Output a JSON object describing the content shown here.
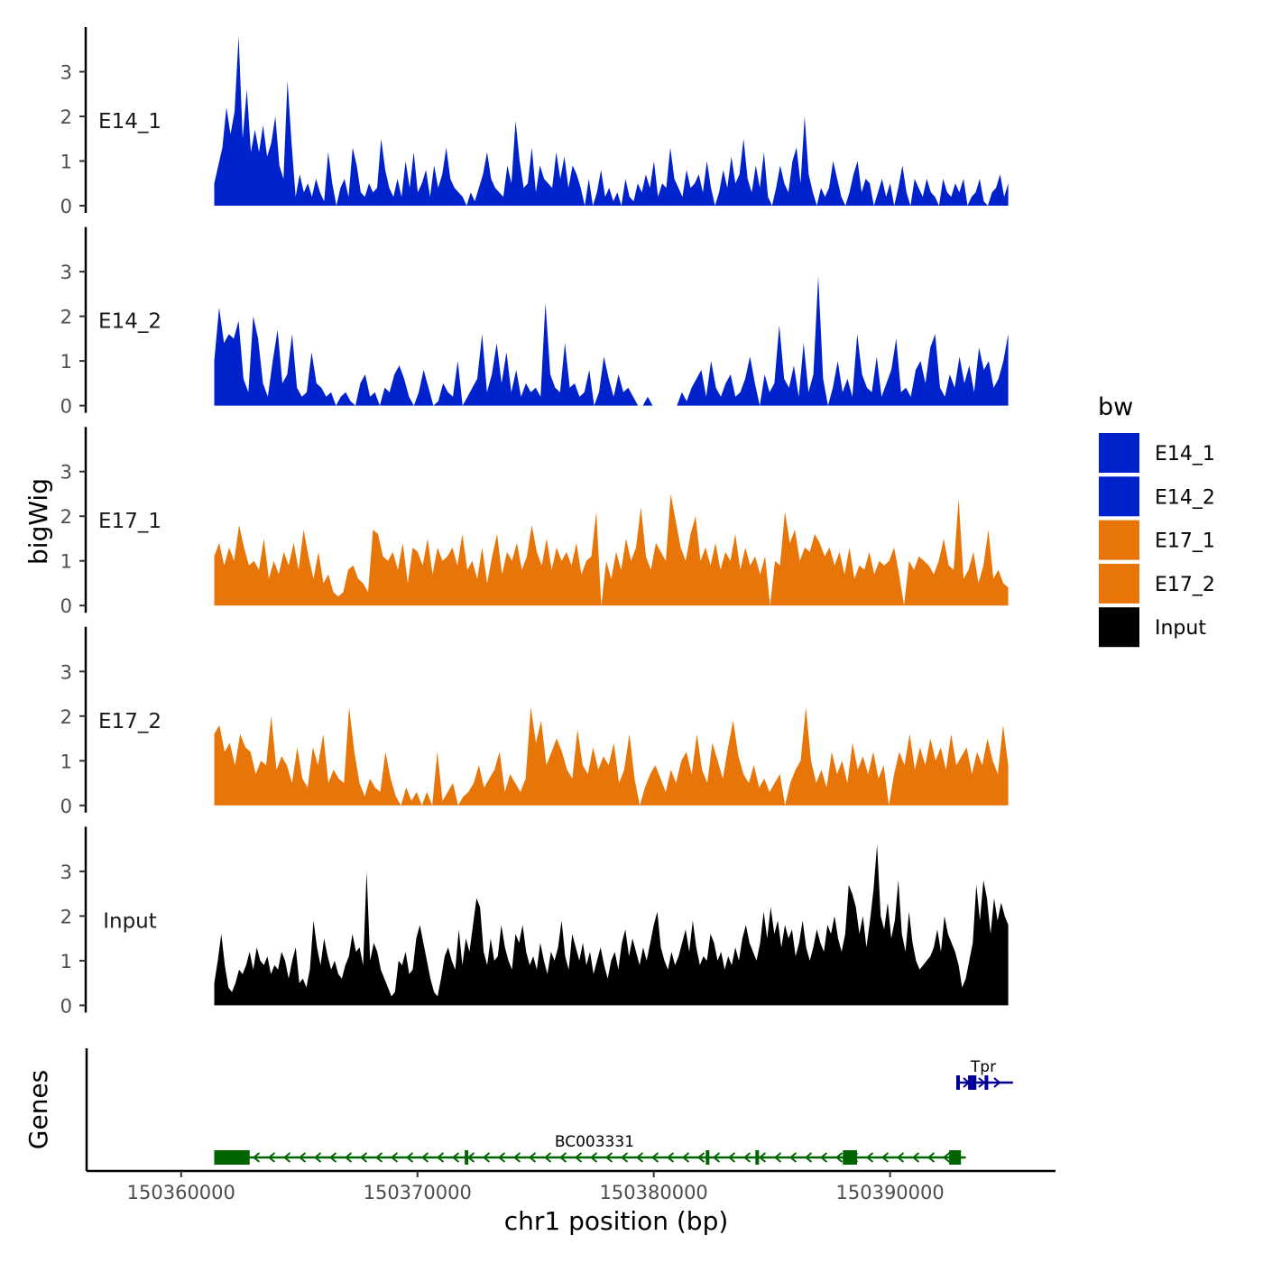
{
  "chart_data": {
    "type": "area",
    "ylabel": "bigWig",
    "xlabel": "chr1 position (bp)",
    "genes_label": "Genes",
    "ylim": [
      0,
      4
    ],
    "yticks": [
      0,
      1,
      2,
      3
    ],
    "xlim": [
      150356000,
      150397000
    ],
    "x_range_data": [
      150361400,
      150395000
    ],
    "xticks": [
      150360000,
      150370000,
      150380000,
      150390000
    ],
    "xtick_labels": [
      "150360000",
      "150370000",
      "150380000",
      "150390000"
    ],
    "legend": {
      "title": "bw",
      "entries": [
        {
          "name": "E14_1",
          "color": "#0022CC"
        },
        {
          "name": "E14_2",
          "color": "#0022CC"
        },
        {
          "name": "E17_1",
          "color": "#E87508"
        },
        {
          "name": "E17_2",
          "color": "#E87508"
        },
        {
          "name": "Input",
          "color": "#000000"
        }
      ]
    },
    "series": [
      {
        "name": "E14_1",
        "color": "#0022CC",
        "values": [
          0.5,
          0.9,
          1.3,
          2.2,
          1.6,
          2.1,
          3.8,
          1.5,
          2.6,
          1.2,
          1.7,
          1.2,
          1.8,
          1.1,
          1.4,
          2.0,
          0.9,
          0.6,
          2.8,
          1.4,
          0.2,
          0.7,
          0.3,
          0.5,
          0.2,
          0.6,
          0.3,
          0.1,
          1.2,
          0.5,
          0.0,
          0.4,
          0.6,
          0.2,
          1.3,
          0.9,
          0.3,
          0.2,
          0.5,
          0.3,
          0.4,
          1.5,
          0.8,
          0.4,
          0.2,
          0.6,
          0.2,
          1.0,
          0.4,
          1.2,
          0.3,
          0.5,
          0.8,
          0.2,
          0.9,
          0.4,
          0.7,
          1.3,
          0.6,
          0.4,
          0.3,
          0.2,
          0.0,
          0.3,
          0.1,
          0.4,
          0.7,
          1.2,
          0.6,
          0.4,
          0.3,
          0.2,
          0.9,
          0.5,
          1.9,
          1.0,
          0.4,
          0.5,
          1.3,
          0.3,
          0.9,
          0.6,
          0.5,
          0.4,
          1.2,
          0.6,
          1.1,
          0.4,
          0.9,
          0.7,
          0.4,
          0.0,
          0.6,
          0.0,
          0.3,
          0.8,
          0.2,
          0.4,
          0.1,
          0.3,
          0.0,
          0.6,
          0.2,
          0.1,
          0.5,
          0.3,
          0.7,
          0.4,
          1.0,
          0.2,
          0.5,
          0.4,
          1.3,
          0.6,
          0.4,
          0.2,
          0.8,
          0.4,
          0.5,
          0.7,
          0.3,
          1.0,
          0.4,
          0.0,
          0.3,
          0.8,
          0.4,
          1.1,
          0.5,
          0.7,
          1.5,
          0.6,
          0.3,
          0.9,
          0.4,
          1.2,
          0.2,
          0.0,
          0.4,
          0.9,
          0.5,
          0.3,
          1.0,
          1.3,
          0.5,
          2.0,
          0.7,
          0.3,
          0.0,
          0.4,
          0.2,
          0.4,
          1.0,
          0.6,
          0.2,
          0.0,
          0.3,
          0.7,
          1.0,
          0.3,
          0.6,
          0.5,
          0.0,
          0.3,
          0.6,
          0.2,
          0.5,
          0.0,
          0.4,
          0.9,
          0.3,
          0.0,
          0.6,
          0.4,
          0.2,
          0.6,
          0.3,
          0.2,
          0.0,
          0.6,
          0.3,
          0.2,
          0.5,
          0.3,
          0.6,
          0.0,
          0.2,
          0.3,
          0.6,
          0.1,
          0.0,
          0.3,
          0.4,
          0.7,
          0.2,
          0.5
        ]
      },
      {
        "name": "E14_2",
        "color": "#0022CC",
        "values": [
          1.0,
          2.2,
          1.4,
          1.6,
          1.5,
          1.9,
          0.6,
          0.3,
          2.0,
          1.5,
          0.5,
          0.2,
          1.0,
          1.7,
          0.5,
          0.7,
          1.6,
          0.4,
          0.2,
          0.3,
          1.2,
          0.5,
          0.4,
          0.2,
          0.3,
          0.0,
          0.2,
          0.3,
          0.1,
          0.0,
          0.5,
          0.7,
          0.2,
          0.3,
          0.0,
          0.4,
          0.3,
          0.7,
          0.9,
          0.6,
          0.2,
          0.0,
          0.3,
          0.8,
          0.4,
          0.0,
          0.1,
          0.5,
          0.3,
          0.2,
          1.0,
          0.0,
          0.2,
          0.4,
          0.6,
          1.6,
          0.3,
          0.7,
          1.4,
          0.5,
          1.2,
          0.3,
          0.8,
          0.2,
          0.5,
          0.3,
          0.4,
          0.2,
          2.3,
          0.7,
          0.4,
          0.3,
          1.4,
          0.4,
          0.5,
          0.2,
          0.3,
          0.8,
          0.0,
          0.3,
          1.1,
          0.6,
          0.2,
          0.7,
          0.3,
          0.4,
          0.2,
          0.0,
          0.0,
          0.2,
          0.0,
          0.0,
          0.0,
          0.0,
          0.0,
          0.0,
          0.3,
          0.1,
          0.4,
          0.6,
          0.8,
          0.2,
          1.0,
          0.4,
          0.2,
          0.5,
          0.7,
          0.2,
          0.3,
          0.6,
          1.1,
          0.5,
          0.0,
          0.7,
          0.3,
          0.5,
          1.8,
          0.6,
          0.4,
          0.9,
          0.2,
          1.4,
          0.3,
          0.7,
          2.9,
          0.6,
          0.0,
          0.4,
          1.0,
          0.3,
          0.6,
          0.2,
          1.6,
          0.7,
          0.4,
          0.3,
          1.1,
          0.2,
          0.5,
          0.8,
          1.5,
          0.3,
          0.4,
          0.2,
          0.8,
          1.0,
          0.5,
          1.3,
          1.6,
          0.4,
          0.2,
          0.7,
          0.4,
          1.1,
          0.5,
          0.9,
          0.3,
          1.3,
          0.8,
          1.0,
          0.4,
          0.6,
          1.0,
          1.6
        ]
      },
      {
        "name": "E17_1",
        "color": "#E87508",
        "values": [
          1.1,
          1.4,
          0.9,
          1.3,
          1.0,
          1.8,
          1.3,
          0.9,
          1.0,
          0.8,
          1.5,
          0.6,
          1.0,
          0.7,
          1.2,
          0.9,
          1.4,
          0.8,
          1.7,
          1.1,
          0.6,
          1.2,
          0.5,
          0.7,
          0.3,
          0.2,
          0.3,
          0.8,
          0.9,
          0.6,
          0.5,
          0.3,
          1.7,
          1.6,
          1.1,
          1.0,
          1.2,
          0.8,
          1.4,
          0.5,
          1.3,
          1.2,
          0.9,
          1.5,
          0.7,
          1.3,
          1.0,
          1.1,
          1.3,
          0.9,
          1.6,
          0.8,
          1.0,
          0.6,
          1.3,
          0.5,
          1.1,
          1.6,
          0.7,
          1.2,
          1.0,
          1.4,
          0.8,
          1.1,
          1.8,
          1.2,
          0.9,
          1.5,
          0.8,
          1.3,
          1.0,
          1.2,
          0.9,
          1.4,
          0.7,
          1.0,
          1.1,
          2.1,
          0.0,
          1.0,
          0.6,
          1.2,
          0.8,
          1.5,
          1.0,
          1.3,
          2.2,
          1.1,
          0.8,
          1.4,
          1.2,
          1.0,
          2.5,
          1.9,
          1.3,
          1.0,
          1.6,
          2.0,
          1.0,
          1.3,
          0.9,
          1.4,
          0.8,
          1.2,
          1.0,
          1.6,
          0.8,
          1.3,
          0.9,
          1.1,
          0.7,
          1.1,
          0.0,
          1.0,
          0.9,
          2.1,
          1.4,
          1.7,
          1.0,
          1.3,
          1.2,
          1.6,
          1.4,
          1.1,
          1.3,
          0.9,
          1.2,
          0.7,
          1.3,
          0.6,
          0.9,
          0.8,
          1.2,
          0.7,
          1.0,
          0.9,
          1.0,
          1.3,
          0.7,
          0.0,
          1.0,
          0.8,
          1.1,
          1.0,
          0.9,
          0.7,
          1.0,
          1.5,
          0.9,
          0.8,
          2.4,
          0.6,
          0.8,
          1.2,
          0.5,
          0.9,
          1.7,
          0.6,
          0.8,
          0.5,
          0.4
        ]
      },
      {
        "name": "E17_2",
        "color": "#E87508",
        "values": [
          1.6,
          1.8,
          1.2,
          1.4,
          0.9,
          1.6,
          1.3,
          1.2,
          0.7,
          1.0,
          0.9,
          2.0,
          0.8,
          1.1,
          0.9,
          0.5,
          1.3,
          0.6,
          0.4,
          1.3,
          0.9,
          1.6,
          0.5,
          0.8,
          0.6,
          0.5,
          2.2,
          1.2,
          0.5,
          0.2,
          0.6,
          0.4,
          0.3,
          1.2,
          0.6,
          0.2,
          0.0,
          0.4,
          0.1,
          0.3,
          0.0,
          0.3,
          0.0,
          1.2,
          0.1,
          0.3,
          0.5,
          0.0,
          0.2,
          0.3,
          0.5,
          0.9,
          0.4,
          0.6,
          0.8,
          1.2,
          0.3,
          0.7,
          0.5,
          0.3,
          0.6,
          2.2,
          1.4,
          1.9,
          0.9,
          1.2,
          1.5,
          1.2,
          0.8,
          0.6,
          1.7,
          0.9,
          0.7,
          1.3,
          0.8,
          1.1,
          0.9,
          1.4,
          0.5,
          0.8,
          1.6,
          0.6,
          0.0,
          0.4,
          0.7,
          0.9,
          0.6,
          0.3,
          0.8,
          0.5,
          1.0,
          1.2,
          0.7,
          1.6,
          0.8,
          0.5,
          1.4,
          1.0,
          0.6,
          1.3,
          1.9,
          1.1,
          0.7,
          0.5,
          0.9,
          0.4,
          0.6,
          0.3,
          0.5,
          0.7,
          0.0,
          0.5,
          0.8,
          1.0,
          2.2,
          1.0,
          0.5,
          0.8,
          0.4,
          1.2,
          0.7,
          1.0,
          0.5,
          1.4,
          0.8,
          1.1,
          0.7,
          1.2,
          0.6,
          0.9,
          0.0,
          0.7,
          1.2,
          0.9,
          1.6,
          0.8,
          1.3,
          0.9,
          1.5,
          1.0,
          1.3,
          0.8,
          1.6,
          0.9,
          1.1,
          1.3,
          0.7,
          1.2,
          0.9,
          1.5,
          1.0,
          0.7,
          1.8,
          0.9
        ]
      },
      {
        "name": "Input",
        "color": "#000000",
        "values": [
          0.5,
          1.0,
          1.6,
          0.9,
          0.4,
          0.3,
          0.5,
          0.8,
          0.7,
          0.9,
          1.2,
          0.8,
          1.3,
          1.0,
          0.9,
          1.1,
          0.7,
          0.9,
          0.8,
          1.2,
          1.0,
          0.6,
          1.0,
          1.3,
          0.5,
          0.6,
          0.4,
          0.8,
          1.9,
          1.3,
          0.9,
          1.5,
          1.1,
          0.8,
          1.0,
          0.7,
          0.6,
          0.9,
          1.1,
          1.6,
          1.2,
          1.3,
          0.9,
          3.0,
          1.0,
          1.4,
          1.2,
          0.8,
          0.6,
          0.4,
          0.2,
          0.3,
          1.0,
          0.9,
          1.2,
          0.7,
          0.8,
          1.5,
          1.8,
          1.4,
          1.0,
          0.6,
          0.3,
          0.2,
          0.6,
          1.1,
          1.3,
          1.0,
          0.8,
          1.7,
          0.9,
          1.5,
          1.2,
          1.8,
          2.4,
          2.2,
          1.2,
          0.9,
          1.5,
          1.0,
          1.1,
          1.8,
          1.3,
          1.0,
          0.8,
          1.6,
          1.4,
          1.8,
          1.2,
          0.9,
          1.1,
          0.8,
          1.4,
          1.0,
          0.7,
          1.2,
          1.0,
          1.3,
          1.9,
          1.1,
          0.8,
          1.6,
          1.3,
          1.0,
          1.4,
          0.9,
          1.2,
          0.7,
          1.0,
          1.3,
          0.9,
          0.6,
          1.0,
          1.2,
          0.8,
          1.4,
          1.7,
          1.1,
          1.5,
          1.2,
          0.9,
          1.3,
          1.0,
          1.4,
          1.8,
          2.1,
          1.3,
          1.0,
          0.8,
          1.2,
          0.9,
          1.1,
          1.4,
          1.7,
          1.2,
          1.9,
          1.3,
          0.9,
          1.1,
          1.0,
          1.6,
          1.4,
          1.0,
          1.2,
          0.8,
          1.1,
          0.9,
          1.3,
          1.0,
          1.5,
          1.8,
          1.4,
          1.2,
          1.0,
          1.4,
          2.1,
          1.5,
          2.2,
          1.6,
          1.9,
          1.3,
          1.8,
          1.5,
          1.7,
          1.1,
          1.4,
          1.9,
          1.3,
          1.0,
          1.3,
          1.7,
          1.4,
          1.2,
          1.8,
          1.6,
          2.0,
          1.5,
          1.2,
          1.6,
          2.7,
          2.5,
          2.2,
          1.6,
          2.0,
          1.3,
          1.9,
          2.6,
          3.6,
          2.0,
          1.7,
          2.3,
          1.5,
          1.9,
          2.8,
          1.6,
          1.2,
          2.1,
          1.4,
          1.0,
          0.8,
          0.9,
          1.0,
          1.1,
          1.3,
          1.7,
          1.2,
          2.0,
          1.6,
          1.4,
          1.2,
          0.9,
          0.4,
          0.6,
          1.0,
          1.4,
          2.7,
          1.9,
          2.8,
          2.4,
          1.6,
          2.4,
          1.9,
          2.3,
          2.0,
          1.8
        ]
      }
    ],
    "genes": [
      {
        "name": "Tpr",
        "color": "#000099",
        "start": 150392800,
        "end": 150395200,
        "strand": "+",
        "row": "upper",
        "exons": [
          [
            150392800,
            150392950
          ],
          [
            150393300,
            150393650
          ],
          [
            150394000,
            150394100
          ]
        ]
      },
      {
        "name": "BC003331",
        "color": "#006400",
        "start": 150361400,
        "end": 150393200,
        "strand": "-",
        "row": "lower",
        "exons": [
          [
            150361400,
            150362900
          ],
          [
            150372000,
            150372150
          ],
          [
            150382200,
            150382350
          ],
          [
            150384300,
            150384450
          ],
          [
            150388000,
            150388600
          ],
          [
            150392500,
            150393000
          ]
        ]
      }
    ]
  }
}
